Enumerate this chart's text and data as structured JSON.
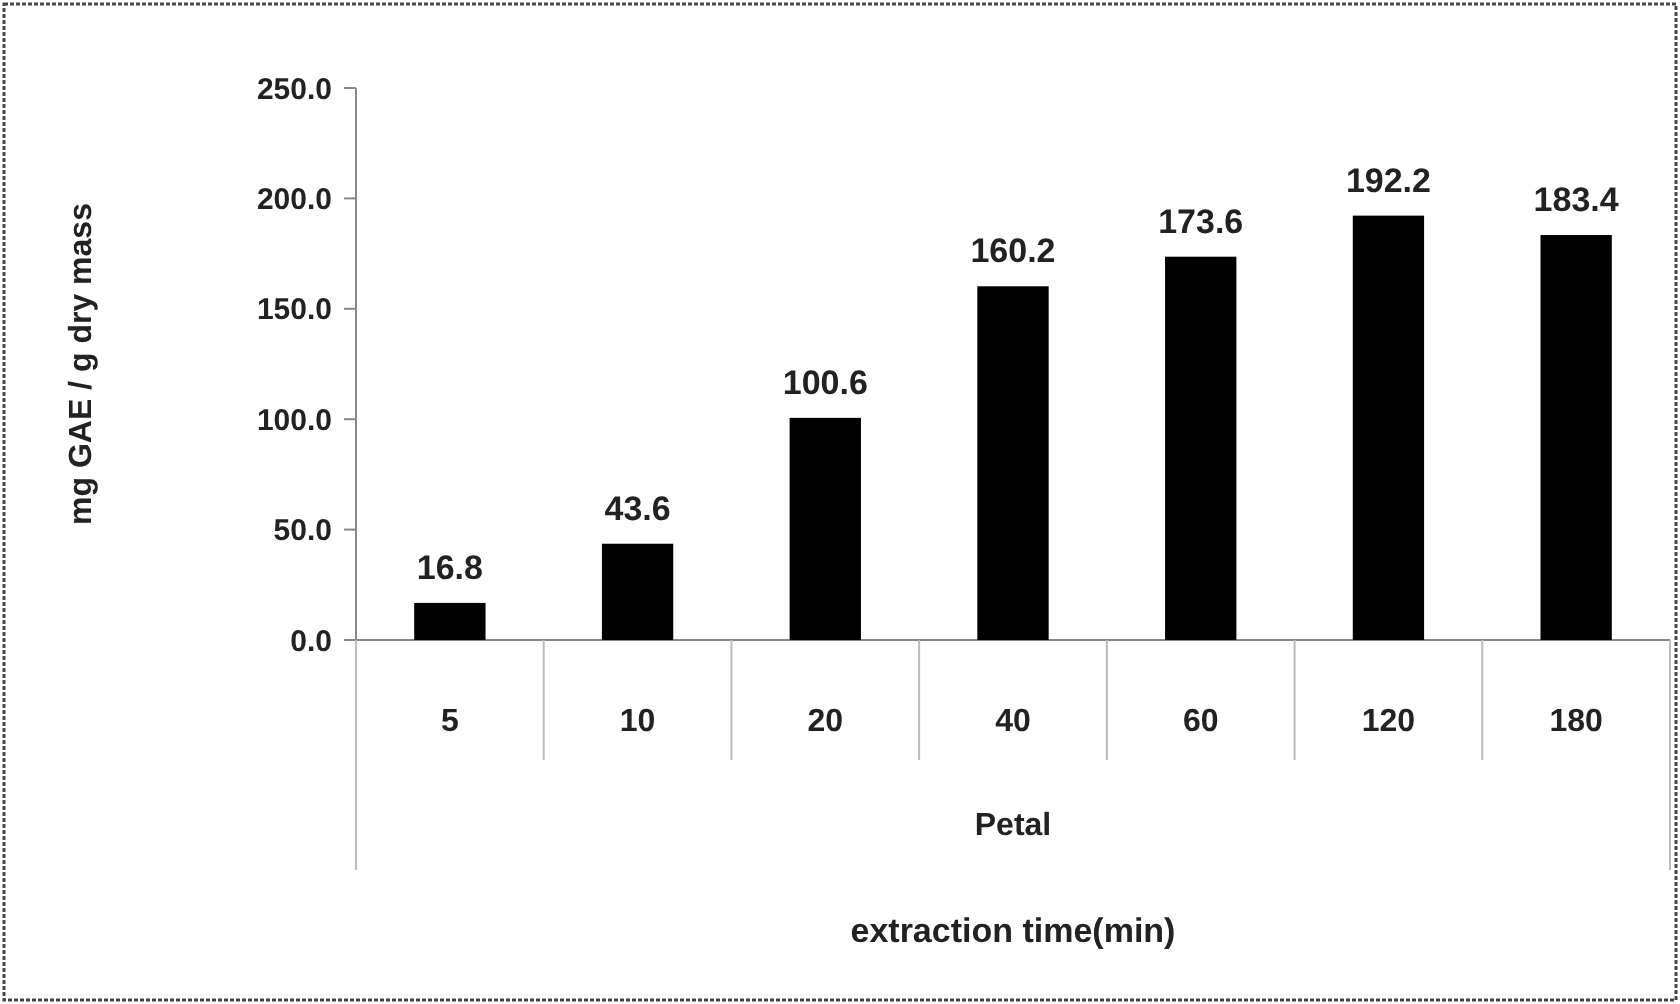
{
  "chart_data": {
    "type": "bar",
    "ylabel": "mg GAE / g dry mass",
    "categories": [
      "5",
      "10",
      "20",
      "40",
      "60",
      "120",
      "180"
    ],
    "values": [
      16.8,
      43.6,
      100.6,
      160.2,
      173.6,
      192.2,
      183.4
    ],
    "color": "#000000",
    "ylim": [
      0,
      250
    ],
    "yticks": [
      {
        "value": 0,
        "label": "0.0"
      },
      {
        "value": 50,
        "label": "50.0"
      },
      {
        "value": 100,
        "label": "100.0"
      },
      {
        "value": 150,
        "label": "150.0"
      },
      {
        "value": 200,
        "label": "200.0"
      },
      {
        "value": 250,
        "label": "250.0"
      }
    ],
    "annotations": [
      "Petal",
      "extraction time(min)"
    ],
    "data_labels": true,
    "grid": false
  }
}
